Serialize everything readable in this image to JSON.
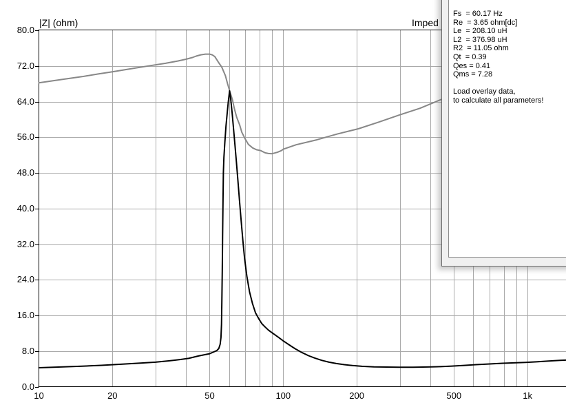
{
  "chart": {
    "ylabel": "|Z| (ohm)",
    "title_partial": "Imped"
  },
  "dialog": {
    "params": [
      "Fs  = 60.17 Hz",
      "Re  = 3.65 ohm[dc]",
      "Le  = 208.10 uH",
      "L2  = 376.98 uH",
      "R2  = 11.05 ohm",
      "Qt  = 0.39",
      "Qes = 0.41",
      "Qms = 7.28"
    ],
    "note": [
      "Load overlay data,",
      "to calculate all parameters!"
    ]
  },
  "chart_data": {
    "type": "line",
    "title": "Imped",
    "ylabel": "|Z| (ohm)",
    "xlabel": "",
    "x_scale": "log",
    "x_range_hz": [
      10,
      1480
    ],
    "ylim": [
      0,
      80
    ],
    "grid": {
      "vertical_hz": [
        20,
        30,
        40,
        50,
        60,
        70,
        80,
        90,
        100,
        200,
        300,
        400,
        500,
        600,
        700,
        800,
        900,
        1000
      ],
      "horizontal_ohm": [
        8,
        16,
        24,
        32,
        40,
        48,
        56,
        64,
        72
      ]
    },
    "x_ticks": [
      {
        "label": "10",
        "hz": 10
      },
      {
        "label": "20",
        "hz": 20
      },
      {
        "label": "50",
        "hz": 50
      },
      {
        "label": "100",
        "hz": 100
      },
      {
        "label": "200",
        "hz": 200
      },
      {
        "label": "500",
        "hz": 500
      },
      {
        "label": "1k",
        "hz": 1000
      }
    ],
    "y_ticks": [
      {
        "label": "80.0",
        "ohm": 80
      },
      {
        "label": "72.0",
        "ohm": 72
      },
      {
        "label": "64.0",
        "ohm": 64
      },
      {
        "label": "56.0",
        "ohm": 56
      },
      {
        "label": "48.0",
        "ohm": 48
      },
      {
        "label": "40.0",
        "ohm": 40
      },
      {
        "label": "32.0",
        "ohm": 32
      },
      {
        "label": "24.0",
        "ohm": 24
      },
      {
        "label": "16.0",
        "ohm": 16
      },
      {
        "label": "8.0",
        "ohm": 8
      },
      {
        "label": "0.0",
        "ohm": 0
      }
    ],
    "colors": {
      "axis": "#000000",
      "grid": "#a9a9a9",
      "impedance_curve": "#000000",
      "overlay_curve": "#878787"
    },
    "series": [
      {
        "name": "overlay-impedance",
        "color": "#878787",
        "width": 2,
        "points": [
          [
            10,
            68.2
          ],
          [
            12.5,
            69.0
          ],
          [
            15,
            69.6
          ],
          [
            17.5,
            70.2
          ],
          [
            20,
            70.7
          ],
          [
            24,
            71.4
          ],
          [
            28,
            72.0
          ],
          [
            33,
            72.6
          ],
          [
            37,
            73.1
          ],
          [
            40,
            73.5
          ],
          [
            42.5,
            73.9
          ],
          [
            44,
            74.2
          ],
          [
            46,
            74.5
          ],
          [
            48,
            74.65
          ],
          [
            50,
            74.65
          ],
          [
            51.2,
            74.5
          ],
          [
            52.5,
            74.1
          ],
          [
            54.2,
            72.9
          ],
          [
            56.1,
            71.7
          ],
          [
            58,
            69.8
          ],
          [
            59.2,
            68.0
          ],
          [
            60.4,
            66.4
          ],
          [
            62,
            64.4
          ],
          [
            63.1,
            62.4
          ],
          [
            64.5,
            60.5
          ],
          [
            66.4,
            58.7
          ],
          [
            67.7,
            57.1
          ],
          [
            69.9,
            55.6
          ],
          [
            72,
            54.4
          ],
          [
            75,
            53.6
          ],
          [
            77.7,
            53.2
          ],
          [
            80.9,
            53.0
          ],
          [
            84.3,
            52.5
          ],
          [
            87,
            52.35
          ],
          [
            90,
            52.3
          ],
          [
            94.5,
            52.6
          ],
          [
            98.3,
            53.0
          ],
          [
            100,
            53.3
          ],
          [
            113,
            54.3
          ],
          [
            137,
            55.4
          ],
          [
            166,
            56.7
          ],
          [
            203,
            57.9
          ],
          [
            246,
            59.4
          ],
          [
            299,
            61.0
          ],
          [
            363,
            62.5
          ],
          [
            440,
            64.4
          ],
          [
            470,
            65.0
          ]
        ]
      },
      {
        "name": "measured-impedance",
        "color": "#000000",
        "width": 2,
        "points": [
          [
            10,
            4.25
          ],
          [
            12,
            4.4
          ],
          [
            15,
            4.6
          ],
          [
            18,
            4.8
          ],
          [
            22,
            5.05
          ],
          [
            26,
            5.3
          ],
          [
            30,
            5.5
          ],
          [
            34,
            5.8
          ],
          [
            38,
            6.1
          ],
          [
            41,
            6.35
          ],
          [
            45,
            6.9
          ],
          [
            48,
            7.2
          ],
          [
            50,
            7.4
          ],
          [
            52,
            7.8
          ],
          [
            53.5,
            8.1
          ],
          [
            54.5,
            8.6
          ],
          [
            55.2,
            9.5
          ],
          [
            55.6,
            11
          ],
          [
            55.9,
            14
          ],
          [
            56.1,
            19
          ],
          [
            56.3,
            26
          ],
          [
            56.5,
            34
          ],
          [
            56.7,
            42
          ],
          [
            56.9,
            48
          ],
          [
            57.2,
            51.5
          ],
          [
            57.7,
            55
          ],
          [
            58.3,
            58.5
          ],
          [
            59,
            61.5
          ],
          [
            59.6,
            64
          ],
          [
            60.3,
            66.4
          ],
          [
            61,
            64.5
          ],
          [
            61.8,
            61.5
          ],
          [
            62.6,
            58
          ],
          [
            63.4,
            54.5
          ],
          [
            64.3,
            50.5
          ],
          [
            65.2,
            46.5
          ],
          [
            66.2,
            42
          ],
          [
            67.2,
            37.5
          ],
          [
            68.3,
            33
          ],
          [
            69.5,
            28.8
          ],
          [
            71,
            24.8
          ],
          [
            72.8,
            21.3
          ],
          [
            74.8,
            18.7
          ],
          [
            77,
            16.6
          ],
          [
            79.5,
            15.2
          ],
          [
            81.8,
            14.15
          ],
          [
            84,
            13.5
          ],
          [
            87,
            12.7
          ],
          [
            90,
            12.1
          ],
          [
            95,
            11.2
          ],
          [
            100,
            10.3
          ],
          [
            106,
            9.35
          ],
          [
            112,
            8.5
          ],
          [
            119,
            7.7
          ],
          [
            127,
            6.95
          ],
          [
            135,
            6.4
          ],
          [
            144,
            5.9
          ],
          [
            154,
            5.5
          ],
          [
            165,
            5.2
          ],
          [
            178,
            4.95
          ],
          [
            192,
            4.75
          ],
          [
            210,
            4.58
          ],
          [
            235,
            4.45
          ],
          [
            265,
            4.4
          ],
          [
            300,
            4.38
          ],
          [
            340,
            4.38
          ],
          [
            390,
            4.42
          ],
          [
            440,
            4.5
          ],
          [
            490,
            4.62
          ],
          [
            550,
            4.78
          ],
          [
            615,
            4.95
          ],
          [
            700,
            5.1
          ],
          [
            790,
            5.25
          ],
          [
            880,
            5.35
          ],
          [
            980,
            5.45
          ],
          [
            1090,
            5.58
          ],
          [
            1220,
            5.75
          ],
          [
            1360,
            5.9
          ],
          [
            1480,
            6.0
          ]
        ]
      }
    ]
  }
}
